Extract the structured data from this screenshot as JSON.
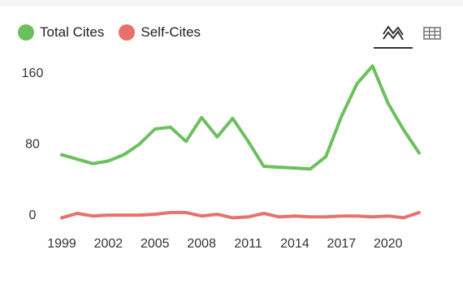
{
  "legend": {
    "items": [
      {
        "label": "Total Cites",
        "color": "#6cbf5e"
      },
      {
        "label": "Self-Cites",
        "color": "#e8716b"
      }
    ]
  },
  "view_toggle": {
    "buttons": [
      {
        "icon": "line-chart-icon",
        "active": true
      },
      {
        "icon": "table-icon",
        "active": false
      }
    ]
  },
  "chart_data": {
    "type": "line",
    "x": [
      1999,
      2000,
      2001,
      2002,
      2003,
      2004,
      2005,
      2006,
      2007,
      2008,
      2009,
      2010,
      2011,
      2012,
      2013,
      2014,
      2015,
      2016,
      2017,
      2018,
      2019,
      2020,
      2021,
      2022
    ],
    "series": [
      {
        "name": "Total Cites",
        "color": "#6cbf5e",
        "values": [
          67,
          62,
          57,
          60,
          67,
          79,
          96,
          98,
          82,
          109,
          87,
          108,
          82,
          54,
          53,
          52,
          51,
          65,
          110,
          147,
          167,
          125,
          95,
          69
        ]
      },
      {
        "name": "Self-Cites",
        "color": "#e8716b",
        "values": [
          -4,
          1,
          -2,
          -1,
          -1,
          -1,
          0,
          2,
          2,
          -2,
          0,
          -4,
          -3,
          1,
          -3,
          -2,
          -3,
          -3,
          -2,
          -2,
          -3,
          -2,
          -4,
          2
        ]
      }
    ],
    "yticks": [
      0,
      80,
      160
    ],
    "xticks": [
      1999,
      2002,
      2005,
      2008,
      2011,
      2014,
      2017,
      2020
    ],
    "ylim": [
      -10,
      170
    ],
    "xlim": [
      1999,
      2022
    ],
    "grid": false,
    "legend_position": "top-left"
  }
}
